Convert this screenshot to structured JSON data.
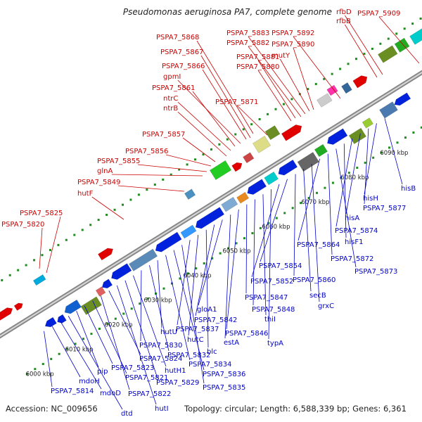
{
  "title": "Pseudomonas aeruginosa PA7, complete genome",
  "footer": {
    "accession": "Accession: NC_009656",
    "summary": "Topology: circular; Length: 6,588,339 bp; Genes: 6,361"
  },
  "colors": {
    "top_label": "#cc0000",
    "bottom_label": "#0000cc",
    "forward_gene": "#e00000",
    "reverse_gene": "#0022dd",
    "backbone": "#888888",
    "dots": "#1e8c1e"
  },
  "ticks": [
    {
      "label": "6000 kbp"
    },
    {
      "label": "6010 kbp"
    },
    {
      "label": "6020 kbp"
    },
    {
      "label": "6030 kbp"
    },
    {
      "label": "6040 kbp"
    },
    {
      "label": "6050 kbp"
    },
    {
      "label": "6060 kbp"
    },
    {
      "label": "6070 kbp"
    },
    {
      "label": "6080 kbp"
    },
    {
      "label": "6090 kbp"
    }
  ],
  "top_labels": [
    {
      "text": "PSPA7_5820"
    },
    {
      "text": "PSPA7_5825"
    },
    {
      "text": "hutF"
    },
    {
      "text": "PSPA7_5849"
    },
    {
      "text": "glnA"
    },
    {
      "text": "PSPA7_5855"
    },
    {
      "text": "PSPA7_5856"
    },
    {
      "text": "PSPA7_5857"
    },
    {
      "text": "ntrB"
    },
    {
      "text": "ntrC"
    },
    {
      "text": "PSPA7_5861"
    },
    {
      "text": "gpmI"
    },
    {
      "text": "PSPA7_5866"
    },
    {
      "text": "PSPA7_5867"
    },
    {
      "text": "PSPA7_5868"
    },
    {
      "text": "PSPA7_5871"
    },
    {
      "text": "PSPA7_5880"
    },
    {
      "text": "PSPA7_5881"
    },
    {
      "text": "PSPA7_5882"
    },
    {
      "text": "PSPA7_5883"
    },
    {
      "text": "mutY"
    },
    {
      "text": "PSPA7_5890"
    },
    {
      "text": "PSPA7_5892"
    },
    {
      "text": "rfbB"
    },
    {
      "text": "rfbD"
    },
    {
      "text": "PSPA7_5909"
    }
  ],
  "bottom_labels": [
    {
      "text": "PSPA7_5814"
    },
    {
      "text": "mdoH"
    },
    {
      "text": "mdoD"
    },
    {
      "text": "dtd"
    },
    {
      "text": "pip"
    },
    {
      "text": "PSPA7_5823"
    },
    {
      "text": "PSPA7_5821"
    },
    {
      "text": "PSPA7_5822"
    },
    {
      "text": "PSPA7_5824"
    },
    {
      "text": "hutI"
    },
    {
      "text": "PSPA7_5829"
    },
    {
      "text": "hutH1"
    },
    {
      "text": "PSPA7_5830"
    },
    {
      "text": "PSPA7_5832"
    },
    {
      "text": "hutU"
    },
    {
      "text": "PSPA7_5834"
    },
    {
      "text": "PSPA7_5836"
    },
    {
      "text": "PSPA7_5835"
    },
    {
      "text": "PSPA7_5837"
    },
    {
      "text": "hutC"
    },
    {
      "text": "blc"
    },
    {
      "text": "PSPA7_5842"
    },
    {
      "text": "gloA1"
    },
    {
      "text": "estA"
    },
    {
      "text": "PSPA7_5846"
    },
    {
      "text": "PSPA7_5847"
    },
    {
      "text": "PSPA7_5848"
    },
    {
      "text": "thiI"
    },
    {
      "text": "typA"
    },
    {
      "text": "PSPA7_5852"
    },
    {
      "text": "PSPA7_5854"
    },
    {
      "text": "PSPA7_5860"
    },
    {
      "text": "secB"
    },
    {
      "text": "grxC"
    },
    {
      "text": "PSPA7_5864"
    },
    {
      "text": "PSPA7_5872"
    },
    {
      "text": "PSPA7_5873"
    },
    {
      "text": "hisF1"
    },
    {
      "text": "PSPA7_5874"
    },
    {
      "text": "hisA"
    },
    {
      "text": "PSPA7_5877"
    },
    {
      "text": "hisH"
    },
    {
      "text": "hisB"
    }
  ]
}
